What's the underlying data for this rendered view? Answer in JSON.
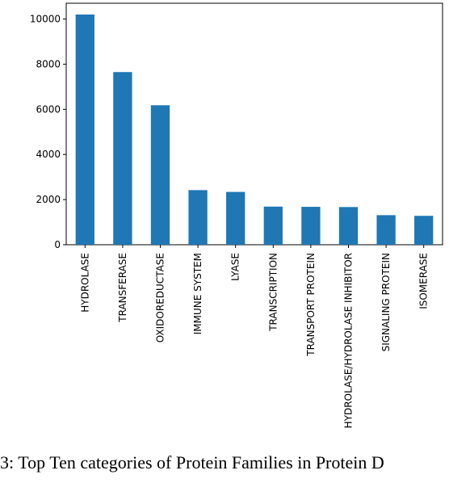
{
  "chart_data": {
    "type": "bar",
    "categories": [
      "HYDROLASE",
      "TRANSFERASE",
      "OXIDOREDUCTASE",
      "IMMUNE SYSTEM",
      "LYASE",
      "TRANSCRIPTION",
      "TRANSPORT PROTEIN",
      "HYDROLASE/HYDROLASE INHIBITOR",
      "SIGNALING PROTEIN",
      "ISOMERASE"
    ],
    "values": [
      10200,
      7650,
      6180,
      2420,
      2340,
      1690,
      1680,
      1670,
      1310,
      1280
    ],
    "ylim": [
      0,
      10700
    ],
    "yticks": [
      0,
      2000,
      4000,
      6000,
      8000,
      10000
    ],
    "title": "",
    "xlabel": "",
    "ylabel": "",
    "color": "#1f77b4",
    "grid": false,
    "legend": false
  },
  "caption": "3: Top Ten categories of Protein Families in Protein D"
}
